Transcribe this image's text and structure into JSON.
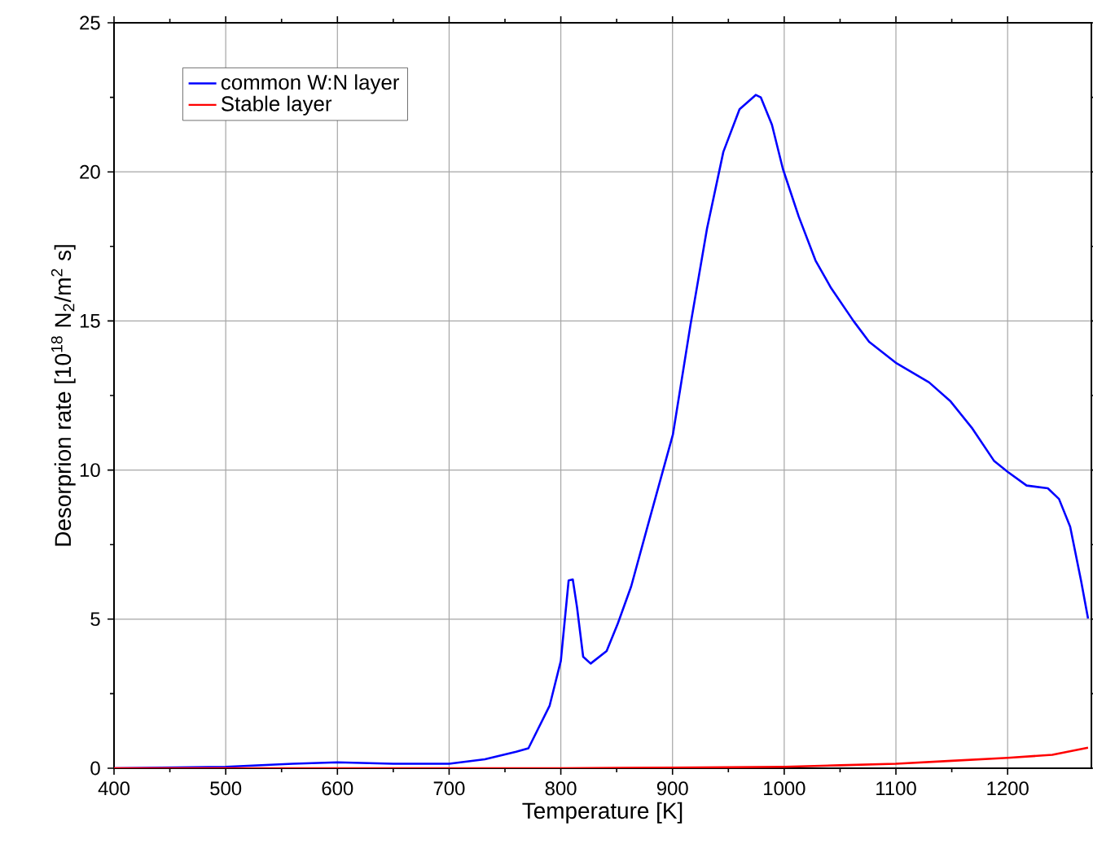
{
  "chart_data": {
    "type": "line",
    "xlabel": "Temperature [K]",
    "ylabel": "Desorprion rate [10$^{18}$ N$_{2}$/m$^{2}$ s]",
    "xlim": [
      400,
      1275
    ],
    "ylim": [
      0,
      25
    ],
    "xticks": [
      400,
      500,
      600,
      700,
      800,
      900,
      1000,
      1100,
      1200
    ],
    "yticks": [
      0,
      5,
      10,
      15,
      20,
      25
    ],
    "grid": true,
    "legend": "top left",
    "marker": "none",
    "line_style": "solid",
    "series": [
      {
        "name": "common W:N layer",
        "color": "#0000ff",
        "x": [
          400,
          500,
          560,
          600,
          650,
          700,
          732,
          760,
          771,
          790,
          800,
          807,
          810.7,
          814.5,
          820,
          826.7,
          841,
          851,
          863,
          877.6,
          887,
          900.4,
          916,
          930.9,
          945.5,
          960,
          974.5,
          979,
          989,
          998.8,
          1013,
          1028,
          1042,
          1062,
          1076,
          1100.6,
          1129.7,
          1149,
          1168.5,
          1188,
          1200,
          1217,
          1236,
          1246,
          1256,
          1265.7,
          1272
        ],
        "values": [
          0,
          0.05,
          0.15,
          0.2,
          0.15,
          0.15,
          0.3,
          0.55,
          0.67,
          2.1,
          3.6,
          6.3,
          6.33,
          5.4,
          3.74,
          3.51,
          3.93,
          4.85,
          6.1,
          8.1,
          9.38,
          11.2,
          14.85,
          18.1,
          20.67,
          22.1,
          22.58,
          22.5,
          21.58,
          20.1,
          18.5,
          17.03,
          16.1,
          15.0,
          14.3,
          13.58,
          12.94,
          12.3,
          11.39,
          10.3,
          9.94,
          9.48,
          9.39,
          9.03,
          8.1,
          6.3,
          5.02
        ]
      },
      {
        "name": "Stable layer",
        "color": "#ff0000",
        "x": [
          400,
          600,
          800,
          900,
          1000,
          1050,
          1100,
          1150,
          1200,
          1240,
          1272
        ],
        "values": [
          0,
          0,
          0,
          0.02,
          0.05,
          0.1,
          0.15,
          0.25,
          0.35,
          0.45,
          0.69
        ]
      }
    ]
  }
}
